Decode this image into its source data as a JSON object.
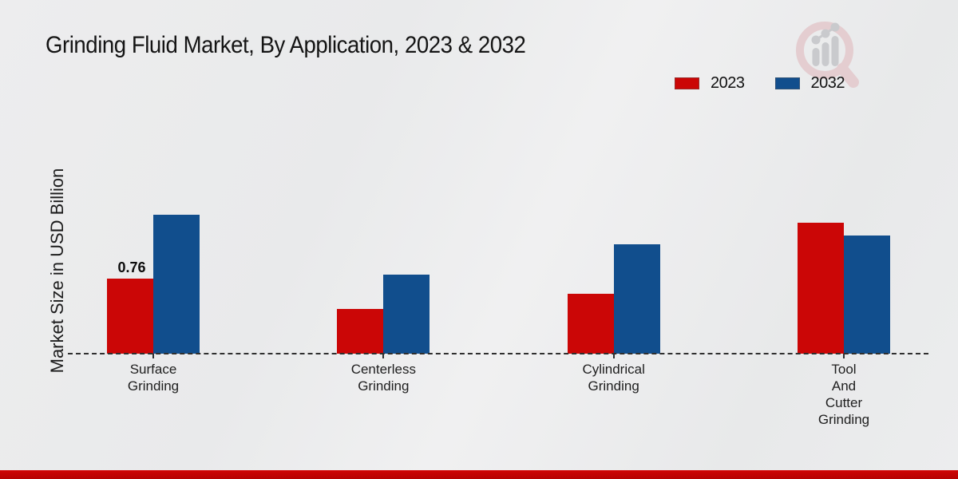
{
  "title": "Grinding Fluid Market, By Application, 2023 & 2032",
  "y_axis_label": "Market Size in USD Billion",
  "legend": {
    "items": [
      {
        "label": "2023",
        "color": "#cb0606"
      },
      {
        "label": "2032",
        "color": "#114e8d"
      }
    ],
    "position": "top-right"
  },
  "branding": {
    "logo_icon": "magnifier-bar-chart-watermark"
  },
  "colors": {
    "series_2023": "#cb0606",
    "series_2032": "#114e8d",
    "background": "#eaebec",
    "bottom_band": "#c00303",
    "axis_line": "#2f2f2f",
    "text": "#141414"
  },
  "chart_data": {
    "type": "bar",
    "title": "Grinding Fluid Market, By Application, 2023 & 2032",
    "xlabel": "",
    "ylabel": "Market Size in USD Billion",
    "categories": [
      [
        "Surface",
        "Grinding"
      ],
      [
        "Centerless",
        "Grinding"
      ],
      [
        "Cylindrical",
        "Grinding"
      ],
      [
        "Tool",
        "And",
        "Cutter",
        "Grinding"
      ]
    ],
    "series": [
      {
        "name": "2023",
        "color": "#cb0606",
        "values": [
          0.76,
          0.45,
          0.61,
          1.33
        ]
      },
      {
        "name": "2032",
        "color": "#114e8d",
        "values": [
          1.41,
          0.8,
          1.11,
          1.2
        ]
      }
    ],
    "data_labels": [
      {
        "series_index": 0,
        "category_index": 0,
        "text": "0.76"
      }
    ],
    "ylim": [
      0,
      1.5
    ],
    "grid": false,
    "y_ticks_visible": false,
    "baseline_style": "dashed",
    "legend_position": "top-right"
  }
}
